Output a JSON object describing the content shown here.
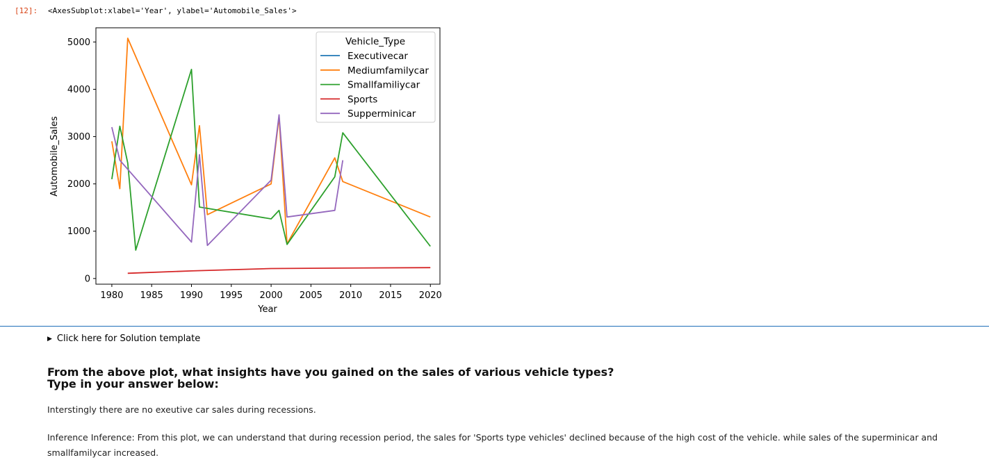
{
  "cell": {
    "prompt": "[12]:",
    "output_repr": "<AxesSubplot:xlabel='Year', ylabel='Automobile_Sales'>"
  },
  "chart_data": {
    "type": "line",
    "xlabel": "Year",
    "ylabel": "Automobile_Sales",
    "xlim": [
      1978.0,
      2021.2
    ],
    "ylim": [
      -120,
      5300
    ],
    "xticks": [
      1980,
      1985,
      1990,
      1995,
      2000,
      2005,
      2010,
      2015,
      2020
    ],
    "yticks": [
      0,
      1000,
      2000,
      3000,
      4000,
      5000
    ],
    "grid": false,
    "legend_title": "Vehicle_Type",
    "legend_placement": "top-right",
    "series": [
      {
        "name": "Executivecar",
        "color": "#1f77b4",
        "points": []
      },
      {
        "name": "Mediumfamilycar",
        "color": "#ff7f0e",
        "points": [
          [
            1980,
            2900
          ],
          [
            1981,
            1900
          ],
          [
            1982,
            5080
          ],
          [
            1990,
            1980
          ],
          [
            1991,
            3230
          ],
          [
            1992,
            1350
          ],
          [
            2000,
            2000
          ],
          [
            2001,
            3420
          ],
          [
            2002,
            730
          ],
          [
            2008,
            2550
          ],
          [
            2009,
            2050
          ],
          [
            2020,
            1300
          ]
        ]
      },
      {
        "name": "Smallfamiliycar",
        "color": "#2ca02c",
        "points": [
          [
            1980,
            2100
          ],
          [
            1981,
            3220
          ],
          [
            1982,
            2440
          ],
          [
            1983,
            600
          ],
          [
            1990,
            4420
          ],
          [
            1991,
            1510
          ],
          [
            2000,
            1260
          ],
          [
            2001,
            1440
          ],
          [
            2002,
            720
          ],
          [
            2008,
            2150
          ],
          [
            2009,
            3080
          ],
          [
            2020,
            680
          ]
        ]
      },
      {
        "name": "Sports",
        "color": "#d62728",
        "points": [
          [
            1982,
            110
          ],
          [
            1990,
            160
          ],
          [
            2000,
            210
          ],
          [
            2008,
            220
          ],
          [
            2020,
            230
          ]
        ]
      },
      {
        "name": "Supperminicar",
        "color": "#9467bd",
        "points": [
          [
            1980,
            3200
          ],
          [
            1981,
            2500
          ],
          [
            1990,
            770
          ],
          [
            1991,
            2620
          ],
          [
            1992,
            700
          ],
          [
            2000,
            2080
          ],
          [
            2001,
            3460
          ],
          [
            2002,
            1300
          ],
          [
            2008,
            1440
          ],
          [
            2009,
            2500
          ]
        ]
      }
    ]
  },
  "solution_toggle": {
    "label": "Click here for Solution template"
  },
  "question": {
    "line1": "From the above plot, what insights have you gained on the sales of various vehicle types?",
    "line2": "Type in your answer below:"
  },
  "answer": {
    "p1": "Interstingly there are no exeutive car sales during recessions.",
    "p2": "Inference Inference: From this plot, we can understand that during recession period, the sales for 'Sports type vehicles' declined because of the high cost of the vehicle. while sales of the superminicar and smallfamilycar increased."
  }
}
